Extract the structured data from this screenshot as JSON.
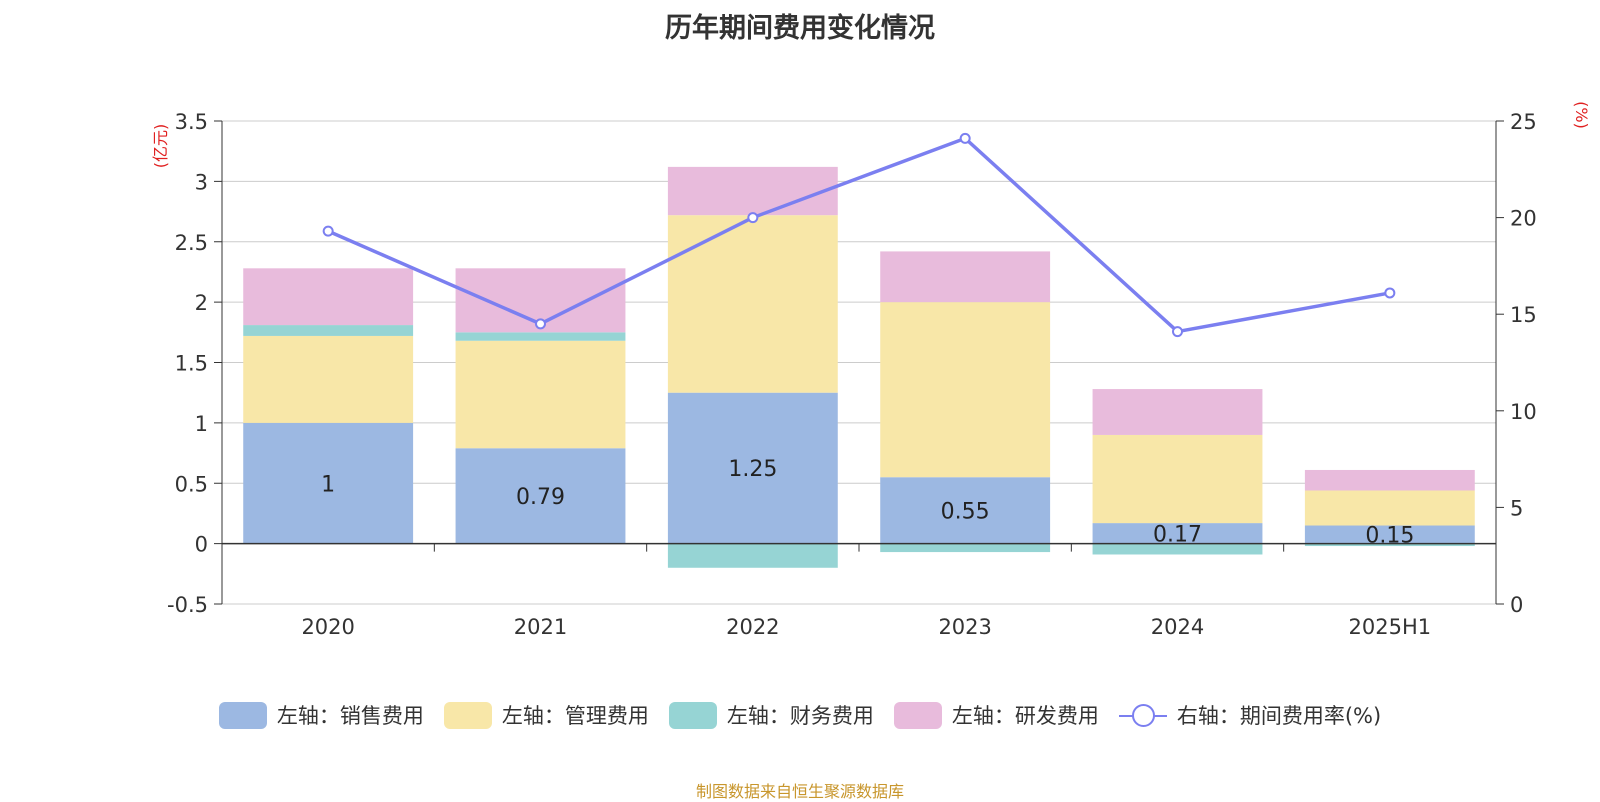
{
  "chart_data": {
    "type": "bar",
    "title": "历年期间费用变化情况",
    "categories": [
      "2020",
      "2021",
      "2022",
      "2023",
      "2024",
      "2025H1"
    ],
    "y_left": {
      "unit_label": "(亿元)",
      "ticks": [
        "3.5",
        "3",
        "2.5",
        "2",
        "1.5",
        "1",
        "0.5",
        "0",
        "-0.5"
      ],
      "ylim": [
        -0.5,
        3.5
      ]
    },
    "y_right": {
      "unit_label": "(%)",
      "ticks": [
        "25",
        "20",
        "15",
        "10",
        "5",
        "0"
      ],
      "ylim": [
        0,
        25
      ]
    },
    "grid": true,
    "legend_position": "bottom",
    "series": [
      {
        "name": "左轴：销售费用",
        "type": "bar",
        "stack": true,
        "color": "#9cb8e2",
        "values": [
          1.0,
          0.79,
          1.25,
          0.55,
          0.17,
          0.15
        ],
        "labels": [
          "1",
          "0.79",
          "1.25",
          "0.55",
          "0.17",
          "0.15"
        ]
      },
      {
        "name": "左轴：管理费用",
        "type": "bar",
        "stack": true,
        "color": "#f8e7a8",
        "values": [
          0.72,
          0.89,
          1.47,
          1.45,
          0.73,
          0.29
        ]
      },
      {
        "name": "左轴：财务费用",
        "type": "bar",
        "stack": true,
        "color": "#96d4d4",
        "values": [
          0.09,
          0.07,
          -0.2,
          -0.07,
          -0.09,
          -0.02
        ]
      },
      {
        "name": "左轴：研发费用",
        "type": "bar",
        "stack": true,
        "color": "#e8bbdc",
        "values": [
          0.47,
          0.53,
          0.4,
          0.42,
          0.38,
          0.17
        ]
      },
      {
        "name": "右轴：期间费用率(%)",
        "type": "line",
        "axis": "right",
        "color": "#7b7ff0",
        "values": [
          19.3,
          14.5,
          20.0,
          24.1,
          14.1,
          16.1
        ]
      }
    ],
    "source": "制图数据来自恒生聚源数据库"
  }
}
